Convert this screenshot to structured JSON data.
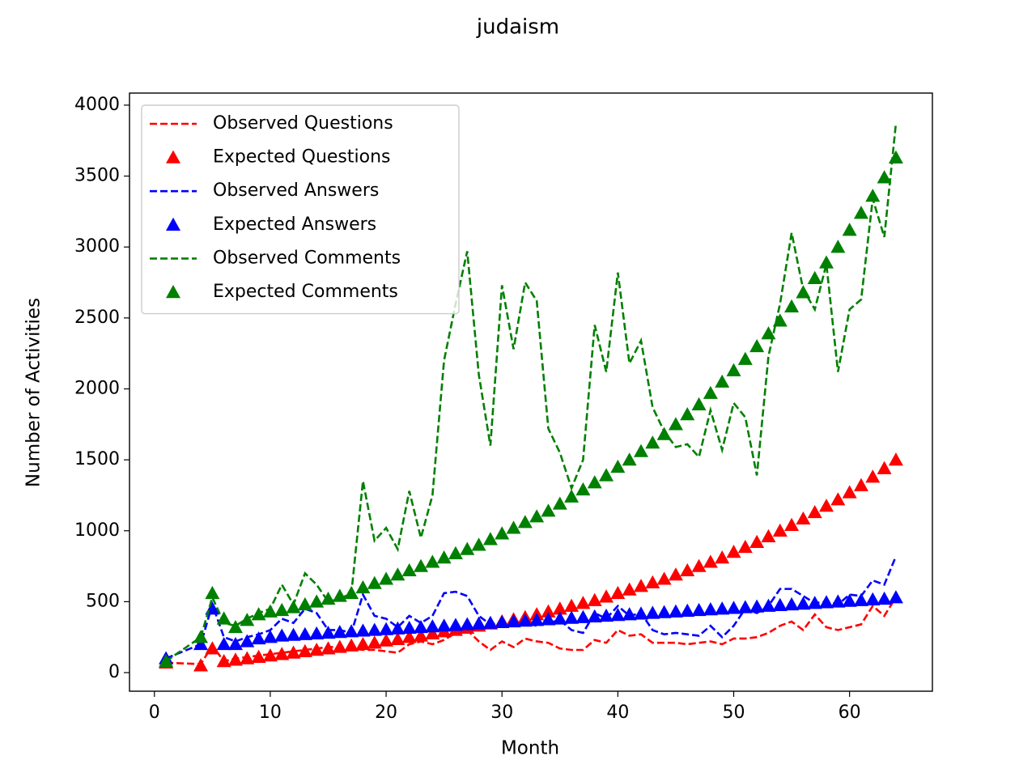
{
  "chart_data": {
    "type": "line",
    "title": "judaism",
    "x_label": "Month",
    "y_label": "Number of Activities",
    "x": [
      1,
      4,
      5,
      6,
      7,
      8,
      9,
      10,
      11,
      12,
      13,
      14,
      15,
      16,
      17,
      18,
      19,
      20,
      21,
      22,
      23,
      24,
      25,
      26,
      27,
      28,
      29,
      30,
      31,
      32,
      33,
      34,
      35,
      36,
      37,
      38,
      39,
      40,
      41,
      42,
      43,
      44,
      45,
      46,
      47,
      48,
      49,
      50,
      51,
      52,
      53,
      54,
      55,
      56,
      57,
      58,
      59,
      60,
      61,
      62,
      63,
      64
    ],
    "series": [
      {
        "name": "Observed Questions",
        "color": "#ff0000",
        "linestyle": "dashed",
        "values": [
          70,
          60,
          190,
          80,
          100,
          110,
          120,
          130,
          140,
          150,
          160,
          170,
          180,
          180,
          170,
          160,
          160,
          150,
          140,
          200,
          220,
          200,
          230,
          280,
          300,
          220,
          160,
          220,
          180,
          240,
          220,
          210,
          170,
          160,
          160,
          230,
          210,
          300,
          260,
          270,
          210,
          210,
          210,
          200,
          210,
          220,
          200,
          240,
          240,
          250,
          280,
          330,
          360,
          300,
          410,
          320,
          300,
          320,
          340,
          470,
          400,
          530
        ]
      },
      {
        "name": "Expected Questions",
        "color": "#ff0000",
        "marker": "triangle",
        "values": [
          70,
          50,
          170,
          80,
          90,
          100,
          110,
          120,
          130,
          140,
          150,
          160,
          170,
          180,
          190,
          200,
          210,
          225,
          235,
          250,
          260,
          275,
          290,
          300,
          315,
          330,
          345,
          360,
          375,
          390,
          410,
          430,
          450,
          470,
          490,
          510,
          535,
          560,
          585,
          610,
          635,
          660,
          690,
          720,
          750,
          780,
          810,
          850,
          885,
          920,
          960,
          1000,
          1040,
          1085,
          1130,
          1175,
          1220,
          1270,
          1320,
          1380,
          1440,
          1500
        ]
      },
      {
        "name": "Observed Answers",
        "color": "#0000ff",
        "linestyle": "dashed",
        "values": [
          100,
          200,
          480,
          250,
          220,
          250,
          270,
          300,
          380,
          350,
          450,
          420,
          300,
          300,
          280,
          550,
          400,
          380,
          320,
          400,
          350,
          400,
          560,
          570,
          540,
          400,
          340,
          350,
          340,
          350,
          330,
          350,
          370,
          300,
          280,
          420,
          380,
          470,
          400,
          420,
          300,
          270,
          280,
          270,
          260,
          330,
          250,
          330,
          450,
          420,
          470,
          590,
          590,
          540,
          490,
          500,
          480,
          550,
          540,
          650,
          620,
          820
        ]
      },
      {
        "name": "Expected Answers",
        "color": "#0000ff",
        "marker": "triangle",
        "values": [
          100,
          200,
          450,
          200,
          200,
          220,
          240,
          250,
          260,
          265,
          270,
          275,
          280,
          285,
          290,
          295,
          300,
          305,
          310,
          315,
          320,
          325,
          330,
          335,
          340,
          345,
          350,
          355,
          360,
          365,
          370,
          375,
          380,
          385,
          390,
          395,
          400,
          405,
          410,
          415,
          420,
          425,
          430,
          435,
          440,
          445,
          450,
          455,
          460,
          465,
          470,
          475,
          480,
          485,
          490,
          495,
          500,
          505,
          510,
          515,
          520,
          530
        ]
      },
      {
        "name": "Observed Comments",
        "color": "#008000",
        "linestyle": "dashed",
        "values": [
          80,
          250,
          530,
          350,
          330,
          380,
          420,
          450,
          620,
          480,
          700,
          620,
          500,
          520,
          560,
          1350,
          930,
          1020,
          870,
          1280,
          950,
          1250,
          2200,
          2600,
          2970,
          2100,
          1600,
          2730,
          2280,
          2750,
          2620,
          1720,
          1550,
          1300,
          1500,
          2450,
          2120,
          2820,
          2180,
          2340,
          1870,
          1700,
          1590,
          1610,
          1520,
          1850,
          1570,
          1900,
          1800,
          1390,
          2230,
          2600,
          3100,
          2700,
          2560,
          2880,
          2120,
          2560,
          2630,
          3340,
          3070,
          3870
        ]
      },
      {
        "name": "Expected Comments",
        "color": "#008000",
        "marker": "triangle",
        "values": [
          80,
          250,
          560,
          380,
          320,
          370,
          410,
          430,
          440,
          460,
          480,
          500,
          520,
          540,
          560,
          600,
          630,
          660,
          690,
          720,
          750,
          780,
          810,
          840,
          870,
          900,
          940,
          980,
          1020,
          1060,
          1100,
          1140,
          1190,
          1240,
          1290,
          1340,
          1390,
          1450,
          1500,
          1560,
          1620,
          1680,
          1750,
          1820,
          1890,
          1970,
          2050,
          2130,
          2210,
          2300,
          2390,
          2480,
          2580,
          2680,
          2780,
          2890,
          3000,
          3120,
          3240,
          3360,
          3490,
          3630
        ]
      }
    ],
    "xlim": [
      -2.15,
      67.15
    ],
    "ylim": [
      -131,
      4085
    ],
    "xticks": [
      0,
      10,
      20,
      30,
      40,
      50,
      60
    ],
    "yticks": [
      0,
      500,
      1000,
      1500,
      2000,
      2500,
      3000,
      3500,
      4000
    ],
    "legend": "upper left"
  }
}
